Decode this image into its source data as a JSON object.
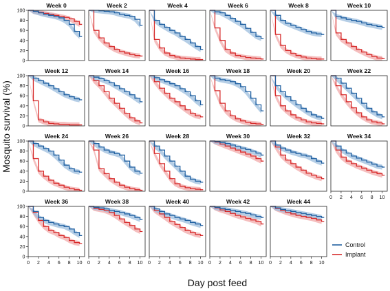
{
  "chart_data": {
    "type": "line",
    "panel_titles": [
      "Week 0",
      "Week 2",
      "Week 4",
      "Week 6",
      "Week 8",
      "Week 10",
      "Week 12",
      "Week 14",
      "Week 16",
      "Week 18",
      "Week 20",
      "Week 22",
      "Week 24",
      "Week 26",
      "Week 28",
      "Week 30",
      "Week 32",
      "Week 34",
      "Week 36",
      "Week 38",
      "Week 40",
      "Week 42",
      "Week 44"
    ],
    "xlabel": "Day post feed",
    "ylabel": "Mosquito survival (%)",
    "xlim": [
      0,
      11
    ],
    "ylim": [
      0,
      100
    ],
    "x_ticks": [
      0,
      2,
      4,
      6,
      8,
      10
    ],
    "y_ticks": [
      0,
      20,
      40,
      60,
      80,
      100
    ],
    "legend": {
      "placement": "bottom-right",
      "entries": [
        "Control",
        "Implant"
      ]
    },
    "colors": {
      "Control": "#1f5fa0",
      "Implant": "#d62a2a",
      "Control_band": "#9cbedd",
      "Implant_band": "#f2aaaa"
    },
    "days": [
      0,
      1,
      2,
      3,
      4,
      5,
      6,
      7,
      8,
      9,
      10
    ],
    "panels": [
      {
        "title": "Week 0",
        "control": [
          100,
          98,
          95,
          92,
          90,
          88,
          85,
          80,
          72,
          58,
          48
        ],
        "implant": [
          100,
          98,
          96,
          94,
          92,
          90,
          88,
          86,
          83,
          78,
          72
        ]
      },
      {
        "title": "Week 2",
        "control": [
          100,
          100,
          99,
          98,
          97,
          95,
          92,
          90,
          88,
          82,
          70
        ],
        "implant": [
          100,
          60,
          45,
          35,
          28,
          22,
          18,
          15,
          12,
          10,
          9
        ]
      },
      {
        "title": "Week 4",
        "control": [
          100,
          80,
          72,
          66,
          60,
          55,
          48,
          42,
          35,
          28,
          22
        ],
        "implant": [
          100,
          42,
          25,
          15,
          10,
          7,
          5,
          4,
          3,
          2,
          2
        ]
      },
      {
        "title": "Week 6",
        "control": [
          100,
          97,
          95,
          90,
          84,
          78,
          72,
          64,
          56,
          48,
          44
        ],
        "implant": [
          100,
          65,
          40,
          22,
          15,
          10,
          8,
          6,
          5,
          4,
          3
        ]
      },
      {
        "title": "Week 8",
        "control": [
          100,
          90,
          80,
          74,
          70,
          66,
          62,
          58,
          55,
          53,
          52
        ],
        "implant": [
          100,
          52,
          30,
          20,
          14,
          10,
          7,
          5,
          4,
          3,
          3
        ]
      },
      {
        "title": "Week 10",
        "control": [
          100,
          88,
          85,
          82,
          80,
          78,
          75,
          72,
          70,
          68,
          66
        ],
        "implant": [
          100,
          55,
          42,
          35,
          28,
          22,
          17,
          12,
          8,
          5,
          4
        ]
      },
      {
        "title": "Week 12",
        "control": [
          100,
          95,
          90,
          85,
          80,
          74,
          68,
          62,
          58,
          54,
          52
        ],
        "implant": [
          100,
          50,
          12,
          8,
          5,
          4,
          3,
          3,
          2,
          2,
          2
        ]
      },
      {
        "title": "Week 14",
        "control": [
          100,
          97,
          94,
          90,
          86,
          80,
          74,
          68,
          62,
          55,
          48
        ],
        "implant": [
          100,
          90,
          80,
          68,
          55,
          45,
          35,
          25,
          16,
          10,
          6
        ]
      },
      {
        "title": "Week 16",
        "control": [
          100,
          96,
          92,
          88,
          84,
          80,
          74,
          68,
          60,
          50,
          42
        ],
        "implant": [
          100,
          88,
          75,
          65,
          55,
          48,
          40,
          32,
          25,
          20,
          18
        ]
      },
      {
        "title": "Week 18",
        "control": [
          100,
          95,
          92,
          90,
          88,
          84,
          78,
          68,
          55,
          42,
          30
        ],
        "implant": [
          100,
          70,
          45,
          30,
          20,
          14,
          10,
          7,
          5,
          4,
          3
        ]
      },
      {
        "title": "Week 20",
        "control": [
          100,
          80,
          68,
          58,
          50,
          42,
          35,
          28,
          22,
          18,
          15
        ],
        "implant": [
          100,
          60,
          40,
          30,
          22,
          16,
          12,
          8,
          6,
          5,
          4
        ]
      },
      {
        "title": "Week 22",
        "control": [
          100,
          95,
          85,
          75,
          65,
          55,
          45,
          35,
          28,
          22,
          18
        ],
        "implant": [
          100,
          80,
          62,
          48,
          36,
          26,
          18,
          12,
          8,
          6,
          4
        ]
      },
      {
        "title": "Week 24",
        "control": [
          100,
          95,
          90,
          85,
          80,
          72,
          62,
          52,
          45,
          40,
          38
        ],
        "implant": [
          100,
          65,
          40,
          30,
          22,
          16,
          12,
          8,
          5,
          3,
          2
        ]
      },
      {
        "title": "Week 26",
        "control": [
          100,
          95,
          88,
          82,
          78,
          75,
          72,
          60,
          48,
          40,
          36
        ],
        "implant": [
          100,
          82,
          45,
          35,
          25,
          18,
          12,
          8,
          5,
          3,
          2
        ]
      },
      {
        "title": "Week 28",
        "control": [
          100,
          90,
          82,
          70,
          60,
          50,
          40,
          30,
          24,
          20,
          18
        ],
        "implant": [
          100,
          75,
          55,
          40,
          25,
          15,
          10,
          7,
          5,
          4,
          3
        ]
      },
      {
        "title": "Week 30",
        "control": [
          100,
          99,
          97,
          95,
          92,
          89,
          86,
          83,
          80,
          76,
          72
        ],
        "implant": [
          100,
          98,
          94,
          90,
          86,
          82,
          78,
          74,
          70,
          65,
          60
        ]
      },
      {
        "title": "Week 32",
        "control": [
          100,
          92,
          86,
          82,
          78,
          75,
          72,
          70,
          65,
          60,
          56
        ],
        "implant": [
          100,
          88,
          72,
          62,
          55,
          48,
          42,
          36,
          32,
          28,
          25
        ]
      },
      {
        "title": "Week 34",
        "control": [
          100,
          90,
          82,
          76,
          70,
          66,
          62,
          58,
          54,
          50,
          48
        ],
        "implant": [
          100,
          82,
          68,
          60,
          55,
          50,
          46,
          42,
          38,
          35,
          32
        ]
      },
      {
        "title": "Week 36",
        "control": [
          100,
          90,
          78,
          72,
          68,
          65,
          62,
          60,
          55,
          48,
          42
        ],
        "implant": [
          100,
          88,
          72,
          60,
          52,
          48,
          42,
          38,
          32,
          28,
          26
        ]
      },
      {
        "title": "Week 38",
        "control": [
          100,
          98,
          97,
          95,
          92,
          90,
          88,
          85,
          82,
          78,
          74
        ],
        "implant": [
          100,
          96,
          94,
          92,
          88,
          82,
          75,
          68,
          62,
          55,
          50
        ]
      },
      {
        "title": "Week 40",
        "control": [
          100,
          95,
          90,
          85,
          82,
          78,
          75,
          72,
          68,
          65,
          62
        ],
        "implant": [
          100,
          92,
          85,
          78,
          70,
          64,
          58,
          52,
          48,
          44,
          42
        ]
      },
      {
        "title": "Week 42",
        "control": [
          100,
          98,
          96,
          94,
          92,
          90,
          88,
          86,
          83,
          80,
          78
        ],
        "implant": [
          100,
          97,
          93,
          90,
          86,
          82,
          79,
          76,
          73,
          70,
          65
        ]
      },
      {
        "title": "Week 44",
        "control": [
          100,
          97,
          94,
          92,
          90,
          88,
          86,
          84,
          82,
          80,
          78
        ],
        "implant": [
          100,
          96,
          92,
          88,
          85,
          82,
          80,
          78,
          76,
          73,
          70
        ]
      }
    ]
  }
}
